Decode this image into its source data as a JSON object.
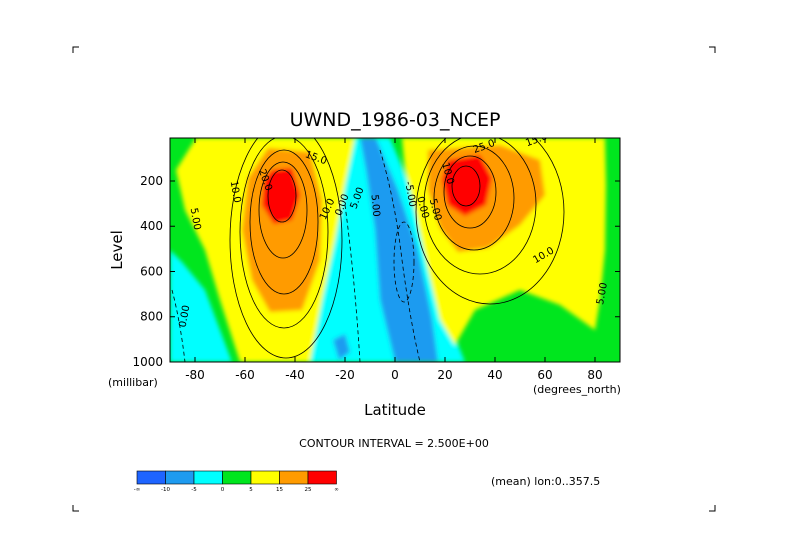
{
  "chart_data": {
    "type": "contour",
    "title": "UWND_1986-03_NCEP",
    "xlabel": "Latitude",
    "ylabel": "Level",
    "x_unit_label": "(degrees_north)",
    "y_unit_label": "(millibar)",
    "xlim": [
      -90,
      90
    ],
    "ylim": [
      1000,
      10
    ],
    "x_ticks": [
      -80,
      -60,
      -40,
      -20,
      0,
      20,
      40,
      60,
      80
    ],
    "x_tick_labels": [
      "-80",
      "-60",
      "-40",
      "-20",
      "0",
      "20",
      "40",
      "60",
      "80"
    ],
    "y_ticks": [
      200,
      400,
      600,
      800,
      1000
    ],
    "y_tick_labels": [
      "200",
      "400",
      "600",
      "800",
      "1000"
    ],
    "contour_interval_text": "CONTOUR INTERVAL = 2.500E+00",
    "footnote": "(mean) lon:0..357.5",
    "contour_labels": [
      {
        "text": "20.0",
        "lat": -53,
        "lev": 200,
        "rotate": 70
      },
      {
        "text": "10.0",
        "lat": -65,
        "lev": 250,
        "rotate": 80
      },
      {
        "text": "5.00",
        "lat": -81,
        "lev": 370,
        "rotate": 80
      },
      {
        "text": "15.0",
        "lat": -32,
        "lev": 110,
        "rotate": 20
      },
      {
        "text": "10.0",
        "lat": -26,
        "lev": 330,
        "rotate": -65
      },
      {
        "text": "0.00",
        "lat": -20,
        "lev": 310,
        "rotate": -70
      },
      {
        "text": "5.00",
        "lat": -14,
        "lev": 280,
        "rotate": -70
      },
      {
        "text": "5.00",
        "lat": -9,
        "lev": 310,
        "rotate": 85
      },
      {
        "text": "-5.00",
        "lat": 5,
        "lev": 260,
        "rotate": 80
      },
      {
        "text": "0.00",
        "lat": 10,
        "lev": 320,
        "rotate": 75
      },
      {
        "text": "5.00",
        "lat": 15,
        "lev": 330,
        "rotate": 75
      },
      {
        "text": "10.0",
        "lat": 20,
        "lev": 170,
        "rotate": 75
      },
      {
        "text": "25.0",
        "lat": 36,
        "lev": 60,
        "rotate": -20
      },
      {
        "text": "15.0",
        "lat": 57,
        "lev": 30,
        "rotate": -20
      },
      {
        "text": "10.0",
        "lat": 60,
        "lev": 540,
        "rotate": -30
      },
      {
        "text": "5.00",
        "lat": 84,
        "lev": 700,
        "rotate": -80
      },
      {
        "text": "0.00",
        "lat": -83,
        "lev": 800,
        "rotate": -80
      }
    ],
    "colorbar": {
      "levels": [
        "-∞",
        "-10",
        "-5",
        "0",
        "5",
        "15",
        "25",
        "∞"
      ],
      "colors": [
        "#1e64ff",
        "#1e9bf0",
        "#00ffff",
        "#00e61e",
        "#ffff00",
        "#ff9b00",
        "#ff0000"
      ]
    }
  }
}
